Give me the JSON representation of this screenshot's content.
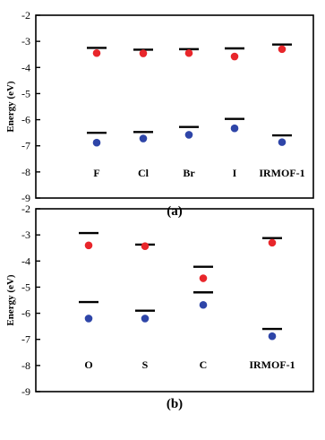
{
  "chart_data": [
    {
      "type": "scatter",
      "panel_label": "(a)",
      "ylabel": "Energy (eV)",
      "ylim": [
        -9,
        -2
      ],
      "yticks": [
        "-2",
        "-3",
        "-4",
        "-5",
        "-6",
        "-7",
        "-8",
        "-9"
      ],
      "categories": [
        "F",
        "Cl",
        "Br",
        "I",
        "IRMOF-1"
      ],
      "series": [
        {
          "marker": "dash",
          "color": "#000000",
          "values": [
            -3.25,
            -3.32,
            -3.3,
            -3.27,
            -3.12
          ]
        },
        {
          "marker": "dash",
          "color": "#000000",
          "values": [
            -6.5,
            -6.47,
            -6.28,
            -5.97,
            -6.6
          ]
        },
        {
          "marker": "dot",
          "color": "#e8262b",
          "values": [
            -3.45,
            -3.46,
            -3.45,
            -3.58,
            -3.3
          ]
        },
        {
          "marker": "dot",
          "color": "#2e45a8",
          "values": [
            -6.88,
            -6.72,
            -6.58,
            -6.33,
            -6.86
          ]
        }
      ]
    },
    {
      "type": "scatter",
      "panel_label": "(b)",
      "ylabel": "Energy (eV)",
      "ylim": [
        -9,
        -2
      ],
      "yticks": [
        "-2",
        "-3",
        "-4",
        "-5",
        "-6",
        "-7",
        "-8",
        "-9"
      ],
      "categories": [
        "O",
        "S",
        "C",
        "IRMOF-1"
      ],
      "series": [
        {
          "marker": "dash",
          "color": "#000000",
          "values": [
            -2.93,
            -3.37,
            -4.22,
            -3.12
          ]
        },
        {
          "marker": "dash",
          "color": "#000000",
          "values": [
            -5.57,
            -5.9,
            -5.2,
            -6.6
          ]
        },
        {
          "marker": "dot",
          "color": "#e8262b",
          "values": [
            -3.4,
            -3.43,
            -4.66,
            -3.3
          ]
        },
        {
          "marker": "dot",
          "color": "#2e45a8",
          "values": [
            -6.2,
            -6.2,
            -5.68,
            -6.88
          ]
        }
      ]
    }
  ]
}
